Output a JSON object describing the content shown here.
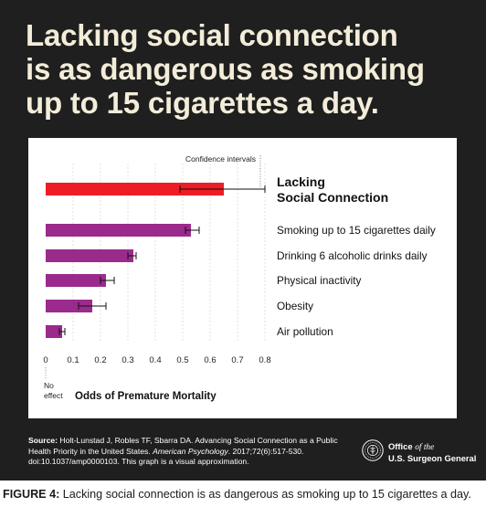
{
  "headline": {
    "lines": [
      "Lacking social connection",
      "is as dangerous as smoking",
      "up to 15 cigarettes a day."
    ]
  },
  "colors": {
    "poster_background": "#1f1f1f",
    "headline_text": "#f3ecd9",
    "highlight_bar": "#ee1c25",
    "comparison_bar": "#9b2a8d",
    "grid": "#cfcfcf",
    "axis_text": "#222222"
  },
  "chart_data": {
    "type": "bar",
    "orientation": "horizontal",
    "xlabel": "Odds of Premature Mortality",
    "xlim": [
      0,
      0.8
    ],
    "ticks": [
      "0",
      "0.1",
      "0.2",
      "0.3",
      "0.4",
      "0.5",
      "0.6",
      "0.7",
      "0.8"
    ],
    "zero_note": [
      "No",
      "effect"
    ],
    "annotation": "Confidence intervals",
    "grid": true,
    "categories": [
      [
        "Lacking",
        "Social Connection"
      ],
      [
        "Smoking up to 15 cigarettes daily"
      ],
      [
        "Drinking 6 alcoholic drinks daily"
      ],
      [
        "Physical inactivity"
      ],
      [
        "Obesity"
      ],
      [
        "Air pollution"
      ]
    ],
    "values": [
      0.65,
      0.53,
      0.32,
      0.22,
      0.17,
      0.06
    ],
    "ci_low": [
      0.49,
      0.51,
      0.3,
      0.2,
      0.12,
      0.05
    ],
    "ci_high": [
      0.8,
      0.56,
      0.33,
      0.25,
      0.22,
      0.07
    ],
    "highlight_index": 0
  },
  "source": {
    "label": "Source:",
    "text_before_journal": "Holt-Lunstad J, Robles TF, Sbarra DA. Advancing Social Connection as a Public Health Priority in the United States.",
    "journal": "American Psychology",
    "text_after_journal": ". 2017;72(6):517-530. doi:10.1037/amp0000103. This graph is a visual approximation."
  },
  "office": {
    "word_office": "Office",
    "word_of_the": "of the",
    "line2": "U.S. Surgeon General",
    "seal_icon": "surgeon-general-seal-icon"
  },
  "caption": {
    "label": "FIGURE 4:",
    "text": "Lacking social connection is as dangerous as smoking up to 15 cigarettes a day."
  }
}
